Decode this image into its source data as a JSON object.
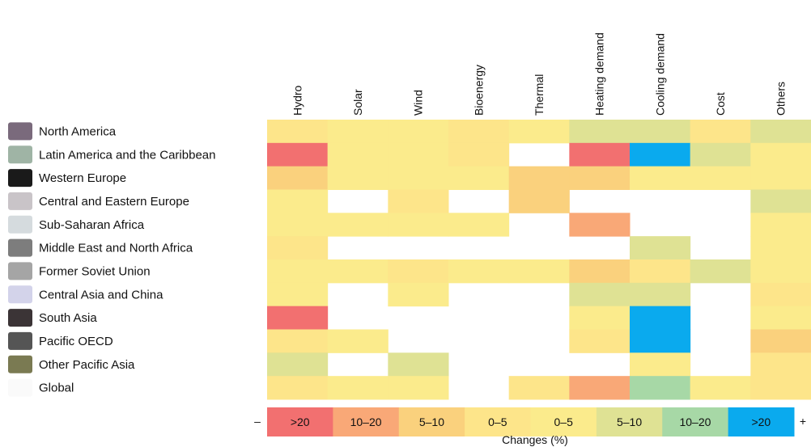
{
  "chart_data": {
    "type": "heatmap",
    "title": "",
    "columns": [
      "Hydro",
      "Solar",
      "Wind",
      "Bioenergy",
      "Thermal",
      "Heating demand",
      "Cooling demand",
      "Cost",
      "Others"
    ],
    "rows": [
      {
        "name": "North America",
        "swatch": "#7a6a7c"
      },
      {
        "name": "Latin America and the Caribbean",
        "swatch": "#9fb4a5"
      },
      {
        "name": "Western Europe",
        "swatch": "#1a1a1a"
      },
      {
        "name": "Central and Eastern Europe",
        "swatch": "#c9c4c8"
      },
      {
        "name": "Sub-Saharan Africa",
        "swatch": "#d5dbde"
      },
      {
        "name": "Middle East and North Africa",
        "swatch": "#7d7d7d"
      },
      {
        "name": "Former Soviet Union",
        "swatch": "#a5a5a5"
      },
      {
        "name": "Central Asia and China",
        "swatch": "#d3d3ea"
      },
      {
        "name": "South Asia",
        "swatch": "#3b3436"
      },
      {
        "name": "Pacific OECD",
        "swatch": "#555555"
      },
      {
        "name": "Other Pacific Asia",
        "swatch": "#7a7a52"
      },
      {
        "name": "Global",
        "swatch": "#fafafa"
      }
    ],
    "cell_categories_note": "cell values are legend class indices: 0 = >20 (decrease), 1 = 10–20 (decrease), 2 = 5–10 (decrease), 3 = 0–5 (decrease), 4 = 0–5 (increase), 5 = 5–10 (increase), 6 = 10–20 (increase), 7 = >20 (increase), null = no data",
    "cells": [
      [
        3,
        4,
        4,
        3,
        4,
        5,
        5,
        3,
        5
      ],
      [
        0,
        4,
        4,
        3,
        null,
        0,
        7,
        5,
        4
      ],
      [
        2,
        4,
        4,
        4,
        2,
        2,
        4,
        4,
        4
      ],
      [
        4,
        null,
        3,
        null,
        2,
        null,
        null,
        null,
        5
      ],
      [
        4,
        4,
        4,
        4,
        null,
        1,
        null,
        null,
        4
      ],
      [
        3,
        null,
        null,
        null,
        null,
        null,
        5,
        null,
        4
      ],
      [
        4,
        4,
        3,
        4,
        4,
        2,
        3,
        5,
        4
      ],
      [
        4,
        null,
        4,
        null,
        null,
        5,
        5,
        null,
        3
      ],
      [
        0,
        null,
        null,
        null,
        null,
        4,
        7,
        null,
        4
      ],
      [
        3,
        4,
        null,
        null,
        null,
        3,
        7,
        null,
        2
      ],
      [
        5,
        null,
        5,
        null,
        null,
        null,
        4,
        null,
        3
      ],
      [
        3,
        4,
        4,
        null,
        3,
        1,
        6,
        4,
        3
      ]
    ],
    "legend": {
      "minus_label": "–",
      "plus_label": "+",
      "title": "Changes (%)",
      "items": [
        {
          "label": ">20",
          "color": "#f27070"
        },
        {
          "label": "10–20",
          "color": "#f9a877"
        },
        {
          "label": "5–10",
          "color": "#fad17d"
        },
        {
          "label": "0–5",
          "color": "#fde58a"
        },
        {
          "label": "0–5",
          "color": "#fbeb8c"
        },
        {
          "label": "5–10",
          "color": "#dfe294"
        },
        {
          "label": "10–20",
          "color": "#a7d8a6"
        },
        {
          "label": ">20",
          "color": "#0aaaee"
        }
      ]
    },
    "grid": false
  }
}
